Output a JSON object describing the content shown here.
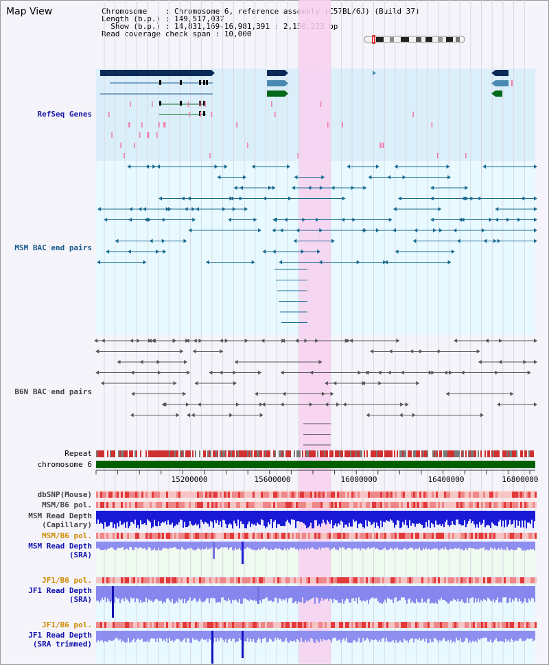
{
  "page": {
    "title": "Map View"
  },
  "info": {
    "chromosome_key": "Chromosome    :",
    "chromosome_value": "Chromosome 6, reference assembly (C57BL/6J) (Build 37)",
    "length_key": "Length (b.p.) :",
    "length_value": "149,517,037",
    "show_key": "Show (b.p.) :",
    "show_value": "14,831,169-16,981,391 : 2,150,223 bp",
    "span_key": "Read coverage check span :",
    "span_value": "10,000"
  },
  "tracks": {
    "refseq": "RefSeq Genes",
    "msm_bac": "MSM BAC end pairs",
    "b6n_bac": "B6N BAC end pairs",
    "repeat": "Repeat",
    "chromosome": "chromosome 6"
  },
  "axis": {
    "ticks": [
      "15200000",
      "15600000",
      "16000000",
      "16400000",
      "16800000"
    ]
  },
  "lower_tracks": {
    "dbsnp": "dbSNP(Mouse)",
    "msm_b6_pol_1": "MSM/B6 pol.",
    "msm_read_depth_cap": "MSM Read Depth",
    "msm_read_depth_cap_sub": "(Capillary)",
    "msm_b6_pol_2": "MSM/B6 pol.",
    "msm_read_depth_sra": "MSM Read Depth",
    "msm_read_depth_sra_sub": "(SRA)",
    "jf1_b6_pol_1": "JF1/B6 pol.",
    "jf1_read_depth_sra": "JF1 Read Depth",
    "jf1_read_depth_sra_sub": "(SRA)",
    "jf1_b6_pol_2": "JF1/B6 pol.",
    "jf1_read_depth_trim": "JF1 Read Depth",
    "jf1_read_depth_trim_sub": "(SRA trimmed)"
  },
  "colors": {
    "refseq_bg": "#dbeffb",
    "bac_bg": "#e8faff",
    "highlight": "#f8d0f0",
    "refseq_label": "#1a1aa8",
    "msm_label": "#1a5a8a",
    "b6n_label": "#444444",
    "orange_label": "#d08a00",
    "blue_label": "#1010b0",
    "chromosome": "#006000"
  }
}
